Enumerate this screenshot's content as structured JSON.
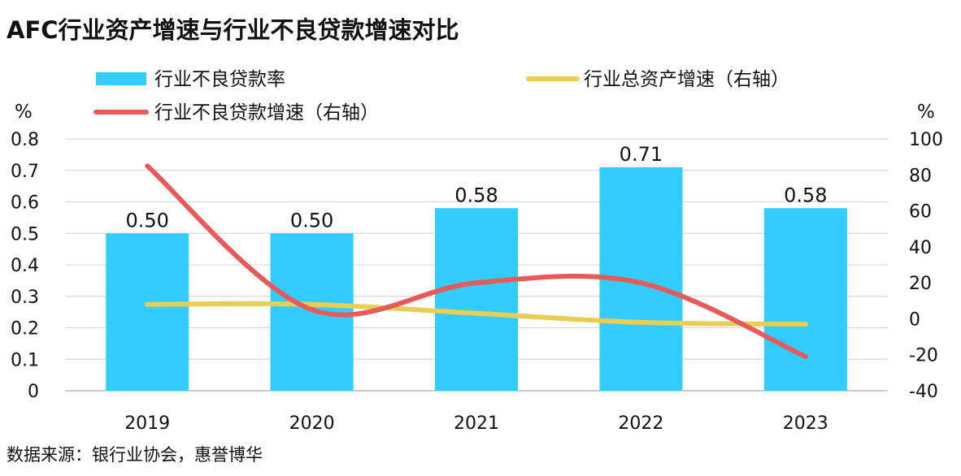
{
  "title": "AFC行业资产增速与行业不良贷款增速对比",
  "source": "数据来源：银行业协会，惠誉博华",
  "colors": {
    "bar": "#33CCFF",
    "asset_line": "#E8CE55",
    "npl_line": "#E65A5A",
    "grid": "#D9D9D9"
  },
  "chart_data": {
    "type": "bar",
    "categories": [
      "2019",
      "2020",
      "2021",
      "2022",
      "2023"
    ],
    "series": [
      {
        "name": "行业不良贷款率",
        "type": "bar",
        "axis": "left",
        "values": [
          0.5,
          0.5,
          0.58,
          0.71,
          0.58
        ],
        "labels": [
          "0.50",
          "0.50",
          "0.58",
          "0.71",
          "0.58"
        ]
      },
      {
        "name": "行业总资产增速（右轴）",
        "type": "line",
        "axis": "right",
        "values": [
          8,
          8,
          3,
          -2,
          -3
        ]
      },
      {
        "name": "行业不良贷款增速（右轴）",
        "type": "line",
        "axis": "right",
        "values": [
          85,
          5,
          20,
          20,
          -21
        ]
      }
    ],
    "left_axis": {
      "unit": "%",
      "ylim": [
        0,
        0.8
      ],
      "ticks": [
        "0",
        "0.1",
        "0.2",
        "0.3",
        "0.4",
        "0.5",
        "0.6",
        "0.7",
        "0.8"
      ]
    },
    "right_axis": {
      "unit": "%",
      "ylim": [
        -40,
        100
      ],
      "ticks": [
        "-40",
        "-20",
        "0",
        "20",
        "40",
        "60",
        "80",
        "100"
      ]
    },
    "grid": true,
    "legend": "top"
  }
}
